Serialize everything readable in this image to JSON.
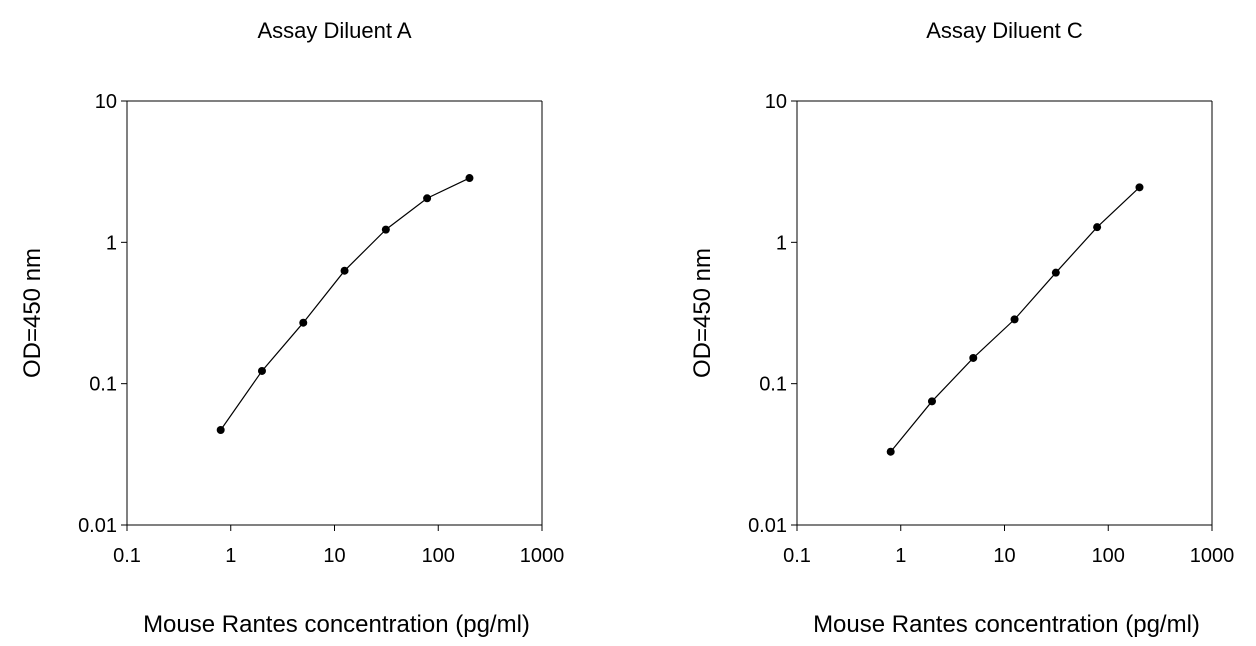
{
  "chart_data": [
    {
      "type": "line",
      "title": "Assay Diluent A",
      "xlabel": "Mouse Rantes concentration (pg/ml)",
      "ylabel": "OD=450 nm",
      "x_scale": "log",
      "y_scale": "log",
      "xlim": [
        0.1,
        1000
      ],
      "ylim": [
        0.01,
        10
      ],
      "x_ticks": [
        0.1,
        1,
        10,
        100,
        1000
      ],
      "x_tick_labels": [
        "0.1",
        "1",
        "10",
        "100",
        "1000"
      ],
      "y_ticks": [
        0.01,
        0.1,
        1,
        10
      ],
      "y_tick_labels": [
        "0.01",
        "0.1",
        "1",
        "10"
      ],
      "grid": false,
      "series": [
        {
          "x": [
            0.8,
            2,
            5,
            12.5,
            31.25,
            78.1,
            200
          ],
          "y": [
            0.047,
            0.123,
            0.27,
            0.63,
            1.23,
            2.05,
            2.85
          ]
        }
      ]
    },
    {
      "type": "line",
      "title": "Assay Diluent C",
      "xlabel": "Mouse Rantes concentration (pg/ml)",
      "ylabel": "OD=450 nm",
      "x_scale": "log",
      "y_scale": "log",
      "xlim": [
        0.1,
        1000
      ],
      "ylim": [
        0.01,
        10
      ],
      "x_ticks": [
        0.1,
        1,
        10,
        100,
        1000
      ],
      "x_tick_labels": [
        "0.1",
        "1",
        "10",
        "100",
        "1000"
      ],
      "y_ticks": [
        0.01,
        0.1,
        1,
        10
      ],
      "y_tick_labels": [
        "0.01",
        "0.1",
        "1",
        "10"
      ],
      "grid": false,
      "series": [
        {
          "x": [
            0.8,
            2,
            5,
            12.5,
            31.25,
            78.1,
            200
          ],
          "y": [
            0.033,
            0.075,
            0.152,
            0.285,
            0.61,
            1.28,
            2.45
          ]
        }
      ]
    }
  ]
}
